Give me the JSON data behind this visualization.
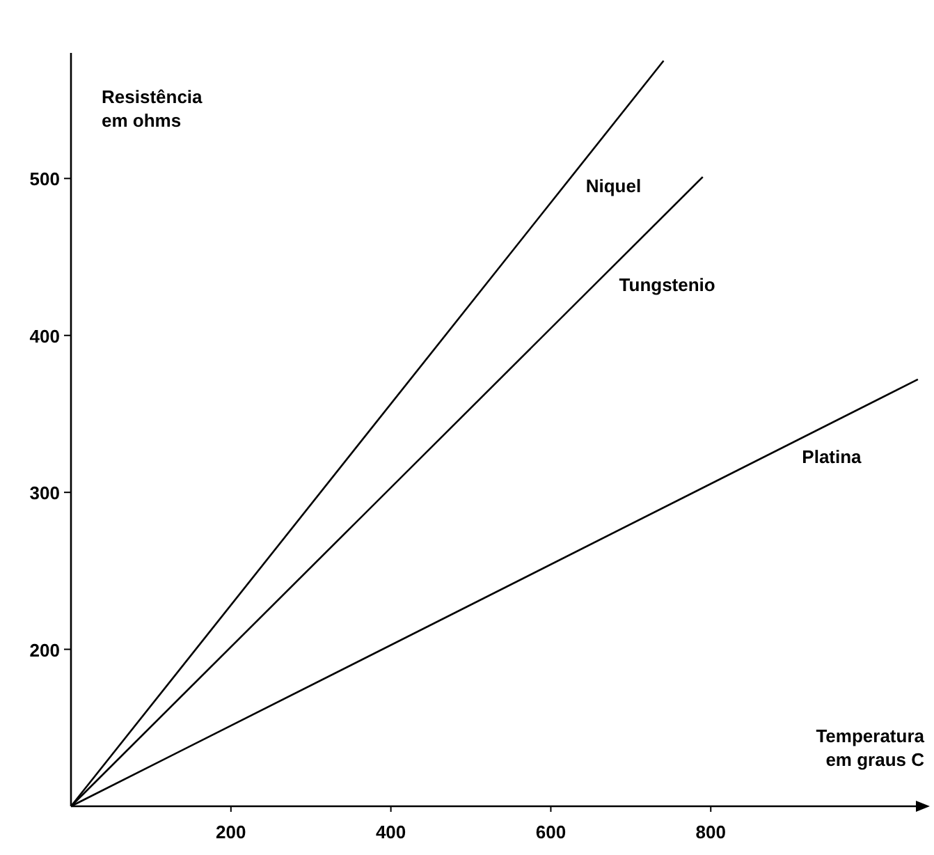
{
  "chart_data": {
    "type": "line",
    "xlabel": "Temperatura\nem graus C",
    "ylabel": "Resistência\nem ohms",
    "xlim": [
      0,
      1060
    ],
    "ylim": [
      100,
      580
    ],
    "xticks": [
      200,
      400,
      600,
      800
    ],
    "yticks": [
      200,
      300,
      400,
      500
    ],
    "grid": false,
    "marker": "none",
    "line_style": "solid",
    "series": [
      {
        "name": "Niquel",
        "color": "#000000",
        "x": [
          0,
          741
        ],
        "values": [
          100,
          575
        ]
      },
      {
        "name": "Tungstenio",
        "color": "#000000",
        "x": [
          0,
          790
        ],
        "values": [
          100,
          501
        ]
      },
      {
        "name": "Platina",
        "color": "#000000",
        "x": [
          0,
          1059
        ],
        "values": [
          100,
          372
        ]
      }
    ]
  }
}
